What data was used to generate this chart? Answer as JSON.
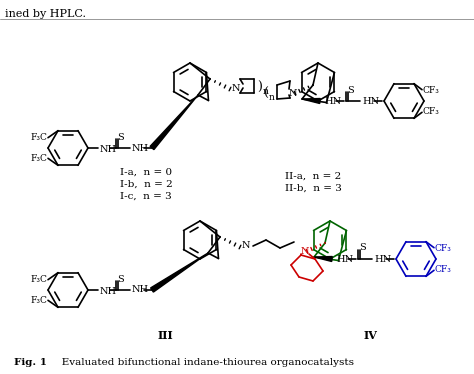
{
  "figsize": [
    4.74,
    3.74
  ],
  "dpi": 100,
  "bg": "#ffffff",
  "black": "#000000",
  "green": "#006400",
  "blue": "#0000bb",
  "red": "#cc0000",
  "top_text": "ined by HPLC.",
  "fig_label": "Fig. 1",
  "fig_caption": "   Evaluated bifunctional indane-thiourea organocatalysts",
  "label_Ia": "I-a,  n = 0",
  "label_Ib": "I-b,  n = 2",
  "label_Ic": "I-c,  n = 3",
  "label_IIa": "II-a,  n = 2",
  "label_IIb": "II-b,  n = 3",
  "label_III": "III",
  "label_IV": "IV"
}
